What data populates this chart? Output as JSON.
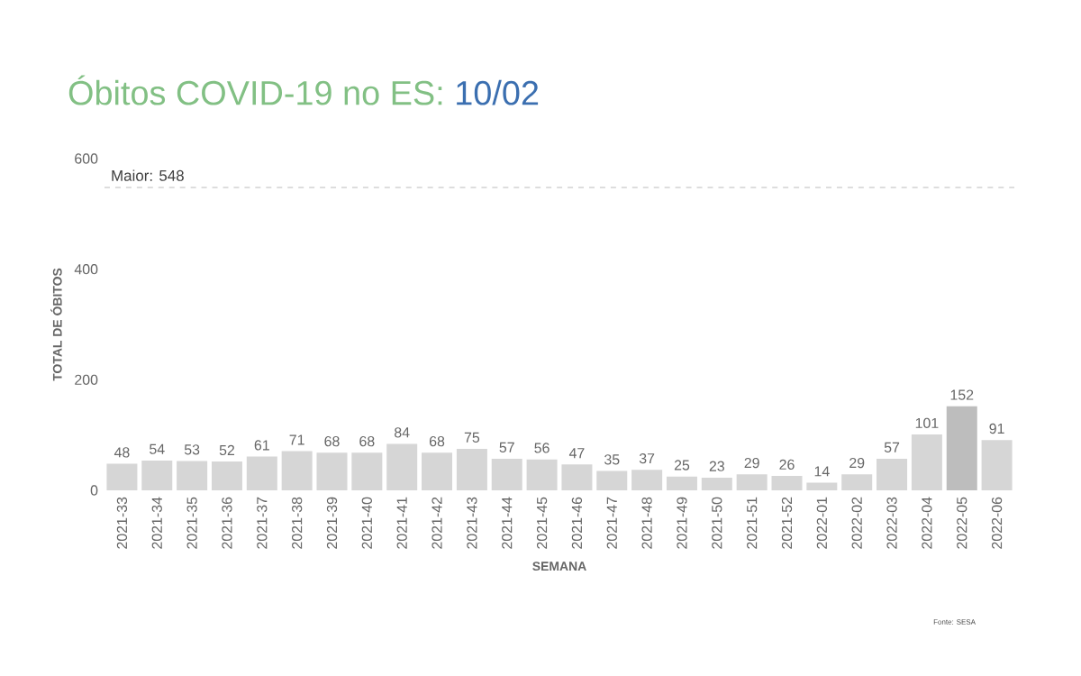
{
  "chart_data": {
    "type": "bar",
    "title": "Óbitos COVID-19 no ES:",
    "subtitle": "10/02",
    "xlabel": "SEMANA",
    "ylabel": "TOTAL DE ÓBITOS",
    "categories": [
      "2021-33",
      "2021-34",
      "2021-35",
      "2021-36",
      "2021-37",
      "2021-38",
      "2021-39",
      "2021-40",
      "2021-41",
      "2021-42",
      "2021-43",
      "2021-44",
      "2021-45",
      "2021-46",
      "2021-47",
      "2021-48",
      "2021-49",
      "2021-50",
      "2021-51",
      "2021-52",
      "2022-01",
      "2022-02",
      "2022-03",
      "2022-04",
      "2022-05",
      "2022-06"
    ],
    "values": [
      48,
      54,
      53,
      52,
      61,
      71,
      68,
      68,
      84,
      68,
      75,
      57,
      56,
      47,
      35,
      37,
      25,
      23,
      29,
      26,
      14,
      29,
      57,
      101,
      152,
      91
    ],
    "colors": [
      "#d6d6d6",
      "#d6d6d6",
      "#d6d6d6",
      "#d6d6d6",
      "#d6d6d6",
      "#d6d6d6",
      "#d6d6d6",
      "#d6d6d6",
      "#d6d6d6",
      "#d6d6d6",
      "#d6d6d6",
      "#d6d6d6",
      "#d6d6d6",
      "#d6d6d6",
      "#d6d6d6",
      "#d6d6d6",
      "#d6d6d6",
      "#d6d6d6",
      "#d6d6d6",
      "#d6d6d6",
      "#d6d6d6",
      "#d6d6d6",
      "#d6d6d6",
      "#d6d6d6",
      "#bdbdbd",
      "#d6d6d6"
    ],
    "ylim": [
      0,
      600
    ],
    "yticks": [
      0,
      200,
      400,
      600
    ],
    "grid": false,
    "data_labels": true,
    "ref_lines": [
      {
        "axis": "y",
        "value": 548,
        "label": "Maior: 548",
        "color": "#dddddd",
        "line_style": "dashed"
      }
    ],
    "annotations": [
      "Fonte: SESA"
    ]
  }
}
